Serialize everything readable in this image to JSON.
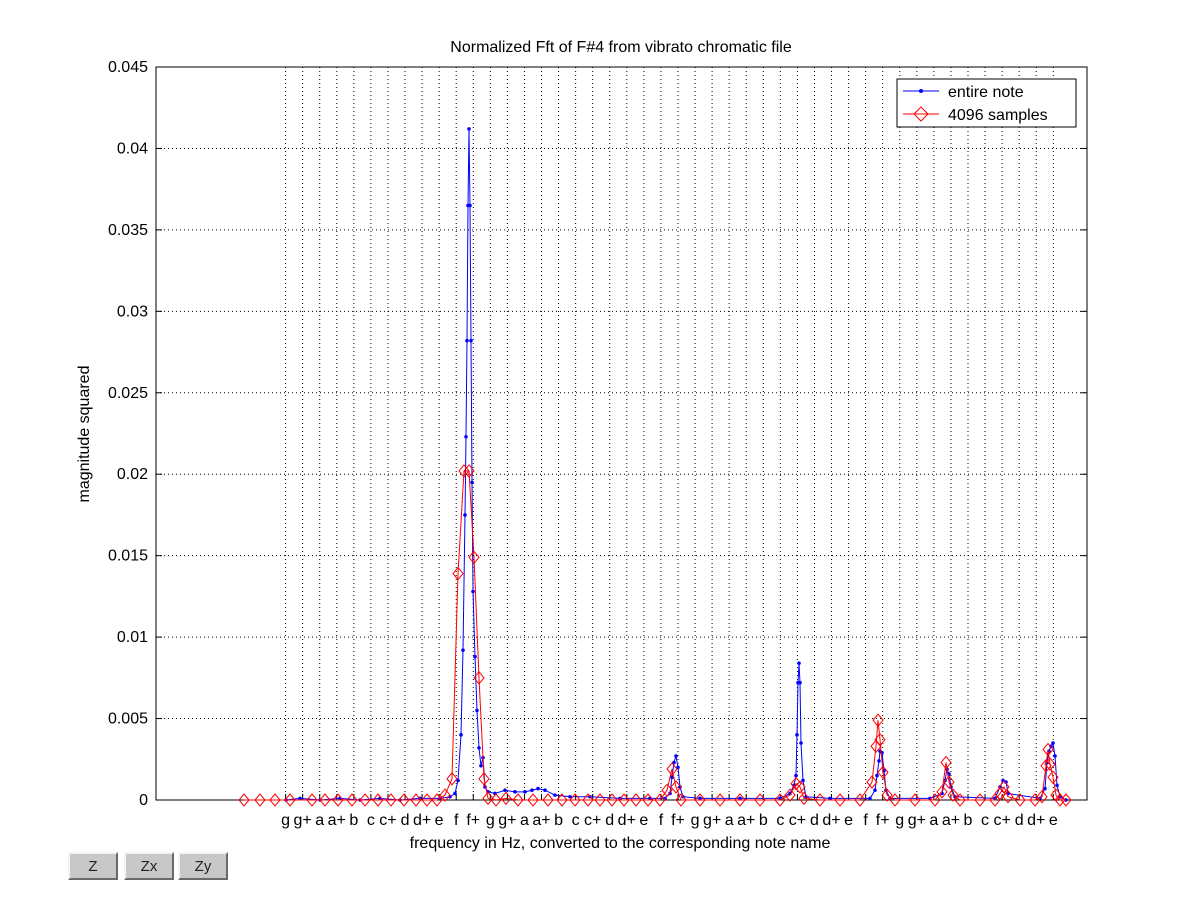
{
  "buttons": {
    "z_label": "Z",
    "zx_label": "Zx",
    "zy_label": "Zy"
  },
  "chart_data": {
    "type": "line",
    "title": "Normalized Fft of F#4 from vibrato chromatic file",
    "xlabel": "frequency in Hz, converted to the corresponding note name",
    "ylabel": "magnitude squared",
    "ylim": [
      0,
      0.045
    ],
    "yticks": [
      "0",
      "0.005",
      "0.01",
      "0.015",
      "0.02",
      "0.025",
      "0.03",
      "0.035",
      "0.04",
      "0.045"
    ],
    "xticks": [
      "g",
      "g+",
      "a",
      "a+",
      "b",
      "c",
      "c+",
      "d",
      "d+",
      "e",
      "f",
      "f+",
      "g",
      "g+",
      "a",
      "a+",
      "b",
      "c",
      "c+",
      "d",
      "d+",
      "e",
      "f",
      "f+",
      "g",
      "g+",
      "a",
      "a+",
      "b",
      "c",
      "c+",
      "d",
      "d+",
      "e",
      "f",
      "f+",
      "g",
      "g+",
      "a",
      "a+",
      "b",
      "c",
      "c+",
      "d",
      "d+",
      "e"
    ],
    "grid": true,
    "legend_position": "top-right",
    "colors": {
      "entire_note": "#0000ff",
      "samples_4096": "#ff0000",
      "grid": "#000000"
    },
    "series": [
      {
        "name": "entire note",
        "marker": "dot",
        "points": [
          [
            286,
            0
          ],
          [
            300,
            0.0001
          ],
          [
            320,
            0
          ],
          [
            340,
            0.0001
          ],
          [
            360,
            0
          ],
          [
            380,
            0.0001
          ],
          [
            400,
            0
          ],
          [
            420,
            0.0001
          ],
          [
            440,
            0.0001
          ],
          [
            450,
            0.0002
          ],
          [
            455,
            0.0004
          ],
          [
            458,
            0.0012
          ],
          [
            461,
            0.004
          ],
          [
            463,
            0.0092
          ],
          [
            465,
            0.0175
          ],
          [
            466,
            0.0223
          ],
          [
            467,
            0.0282
          ],
          [
            468,
            0.0365
          ],
          [
            469,
            0.0412
          ],
          [
            470,
            0.0365
          ],
          [
            471,
            0.0282
          ],
          [
            472,
            0.0195
          ],
          [
            473,
            0.0128
          ],
          [
            475,
            0.0088
          ],
          [
            477,
            0.0055
          ],
          [
            479,
            0.0032
          ],
          [
            481,
            0.0021
          ],
          [
            483,
            0.0026
          ],
          [
            485,
            0.0008
          ],
          [
            488,
            0.0005
          ],
          [
            495,
            0.0004
          ],
          [
            505,
            0.0006
          ],
          [
            515,
            0.0005
          ],
          [
            525,
            0.0005
          ],
          [
            532,
            0.0006
          ],
          [
            538,
            0.0007
          ],
          [
            545,
            0.0006
          ],
          [
            555,
            0.0003
          ],
          [
            570,
            0.0002
          ],
          [
            590,
            0.0002
          ],
          [
            620,
            0.0001
          ],
          [
            650,
            0.0001
          ],
          [
            665,
            0.0001
          ],
          [
            670,
            0.0004
          ],
          [
            672,
            0.0014
          ],
          [
            674,
            0.0023
          ],
          [
            676,
            0.0027
          ],
          [
            678,
            0.002
          ],
          [
            680,
            0.0008
          ],
          [
            683,
            0.0002
          ],
          [
            700,
            0.0001
          ],
          [
            740,
            0.0001
          ],
          [
            780,
            0.0001
          ],
          [
            790,
            0.0004
          ],
          [
            794,
            0.0009
          ],
          [
            796,
            0.0015
          ],
          [
            797,
            0.004
          ],
          [
            798,
            0.0072
          ],
          [
            799,
            0.0084
          ],
          [
            800,
            0.0072
          ],
          [
            801,
            0.0035
          ],
          [
            803,
            0.0012
          ],
          [
            806,
            0.0002
          ],
          [
            830,
            0.0001
          ],
          [
            870,
            0.0001
          ],
          [
            875,
            0.0006
          ],
          [
            877,
            0.0015
          ],
          [
            879,
            0.0024
          ],
          [
            880,
            0.003
          ],
          [
            882,
            0.0029
          ],
          [
            884,
            0.0018
          ],
          [
            886,
            0.0006
          ],
          [
            890,
            0.0001
          ],
          [
            930,
            0.0001
          ],
          [
            942,
            0.0004
          ],
          [
            945,
            0.0012
          ],
          [
            947,
            0.0019
          ],
          [
            949,
            0.0016
          ],
          [
            951,
            0.0008
          ],
          [
            955,
            0.0002
          ],
          [
            995,
            0.0001
          ],
          [
            1000,
            0.0008
          ],
          [
            1003,
            0.0012
          ],
          [
            1006,
            0.0011
          ],
          [
            1008,
            0.0004
          ],
          [
            1040,
            0.0001
          ],
          [
            1045,
            0.0007
          ],
          [
            1047,
            0.0023
          ],
          [
            1049,
            0.003
          ],
          [
            1051,
            0.0033
          ],
          [
            1053,
            0.0035
          ],
          [
            1055,
            0.0027
          ],
          [
            1057,
            0.0009
          ],
          [
            1060,
            0.0002
          ],
          [
            1066,
            0
          ]
        ]
      },
      {
        "name": "4096 samples",
        "marker": "diamond",
        "points": [
          [
            244,
            0
          ],
          [
            260,
            0
          ],
          [
            275,
            0
          ],
          [
            290,
            0
          ],
          [
            312,
            0
          ],
          [
            325,
            0
          ],
          [
            338,
            0
          ],
          [
            352,
            0
          ],
          [
            365,
            0
          ],
          [
            378,
            0
          ],
          [
            391,
            0
          ],
          [
            404,
            0
          ],
          [
            416,
            0
          ],
          [
            427,
            0
          ],
          [
            437,
            0
          ],
          [
            445,
            0.0003
          ],
          [
            452,
            0.0013
          ],
          [
            458,
            0.0139
          ],
          [
            464,
            0.0202
          ],
          [
            469,
            0.0202
          ],
          [
            474,
            0.0149
          ],
          [
            479,
            0.0075
          ],
          [
            484,
            0.0013
          ],
          [
            488,
            0.0001
          ],
          [
            496,
            0
          ],
          [
            506,
            0.0001
          ],
          [
            518,
            0
          ],
          [
            533,
            0
          ],
          [
            548,
            0
          ],
          [
            562,
            0
          ],
          [
            575,
            0
          ],
          [
            588,
            0
          ],
          [
            600,
            0
          ],
          [
            612,
            0
          ],
          [
            624,
            0
          ],
          [
            636,
            0
          ],
          [
            648,
            0
          ],
          [
            660,
            0
          ],
          [
            667,
            0.0006
          ],
          [
            672,
            0.0019
          ],
          [
            676,
            0.0008
          ],
          [
            681,
            0
          ],
          [
            700,
            0
          ],
          [
            720,
            0
          ],
          [
            740,
            0
          ],
          [
            760,
            0
          ],
          [
            780,
            0
          ],
          [
            790,
            0.0003
          ],
          [
            796,
            0.001
          ],
          [
            800,
            0.0008
          ],
          [
            804,
            0.0001
          ],
          [
            820,
            0
          ],
          [
            840,
            0
          ],
          [
            860,
            0
          ],
          [
            872,
            0.0011
          ],
          [
            876,
            0.0033
          ],
          [
            878,
            0.0049
          ],
          [
            880,
            0.0037
          ],
          [
            883,
            0.0017
          ],
          [
            887,
            0.0003
          ],
          [
            895,
            0
          ],
          [
            915,
            0
          ],
          [
            935,
            0
          ],
          [
            942,
            0.0005
          ],
          [
            946,
            0.0023
          ],
          [
            949,
            0.0011
          ],
          [
            953,
            0.0003
          ],
          [
            960,
            0
          ],
          [
            980,
            0
          ],
          [
            995,
            0
          ],
          [
            1000,
            0.0004
          ],
          [
            1004,
            0.0008
          ],
          [
            1008,
            0.0002
          ],
          [
            1020,
            0
          ],
          [
            1035,
            0
          ],
          [
            1042,
            0.0002
          ],
          [
            1046,
            0.0021
          ],
          [
            1048,
            0.0031
          ],
          [
            1050,
            0.0022
          ],
          [
            1053,
            0.0014
          ],
          [
            1056,
            0.0003
          ],
          [
            1060,
            0
          ],
          [
            1066,
            0
          ]
        ]
      }
    ]
  }
}
